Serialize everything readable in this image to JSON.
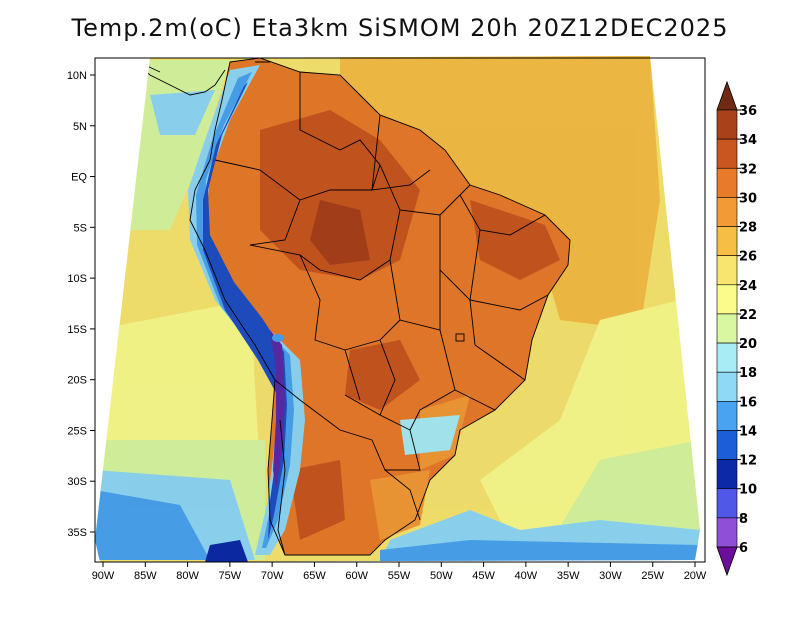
{
  "title": "Temp.2m(oC) Eta3km SiSMOM 20h 20Z12DEC2025",
  "colors": {
    "ocean_warm": "#f6be45",
    "ocean_mid": "#f7e56f",
    "ocean_pale": "#fafb8b",
    "ocean_green": "#d8f7a0",
    "ocean_lightblue": "#8fd8f6",
    "ocean_blue": "#4aa3f0",
    "land_hot": "#e87b2a",
    "land_very_hot": "#c95620",
    "land_extreme": "#a9411b",
    "andes_cold": "#1f6bd6",
    "andes_purple": "#5b2ba8",
    "border": "#000000"
  },
  "map": {
    "lon_labels": [
      "90W",
      "85W",
      "80W",
      "75W",
      "70W",
      "65W",
      "60W",
      "55W",
      "50W",
      "45W",
      "40W",
      "35W",
      "30W",
      "25W",
      "20W"
    ],
    "lat_labels": [
      "10N",
      "5N",
      "EQ",
      "5S",
      "10S",
      "15S",
      "20S",
      "25S",
      "30S",
      "35S"
    ]
  },
  "colorbar": {
    "levels": [
      "36",
      "34",
      "32",
      "30",
      "28",
      "26",
      "24",
      "22",
      "20",
      "18",
      "16",
      "14",
      "12",
      "10",
      "8",
      "6"
    ],
    "colors": [
      "#6e2a12",
      "#a9411b",
      "#c95620",
      "#e87b2a",
      "#f29a36",
      "#f6be45",
      "#f7e56f",
      "#fafb8b",
      "#d8f7a0",
      "#a8ecf5",
      "#8fd8f6",
      "#4aa3f0",
      "#1c5ed8",
      "#0c2aa8",
      "#5058e8",
      "#8f4fd6",
      "#6b0f9a"
    ]
  },
  "chart_data": {
    "type": "heatmap",
    "title": "Temp.2m(oC) Eta3km SiSMOM 20h 20Z12DEC2025",
    "variable": "2 m air temperature",
    "units": "oC",
    "model": "Eta3km SiSMOM",
    "forecast_hour": "20h",
    "valid_time": "20Z12DEC2025",
    "x_range": [
      -90,
      -20
    ],
    "y_range": [
      -38,
      11
    ],
    "xlabel": "",
    "ylabel": "",
    "color_levels": [
      6,
      8,
      10,
      12,
      14,
      16,
      18,
      20,
      22,
      24,
      26,
      28,
      30,
      32,
      34,
      36
    ]
  }
}
